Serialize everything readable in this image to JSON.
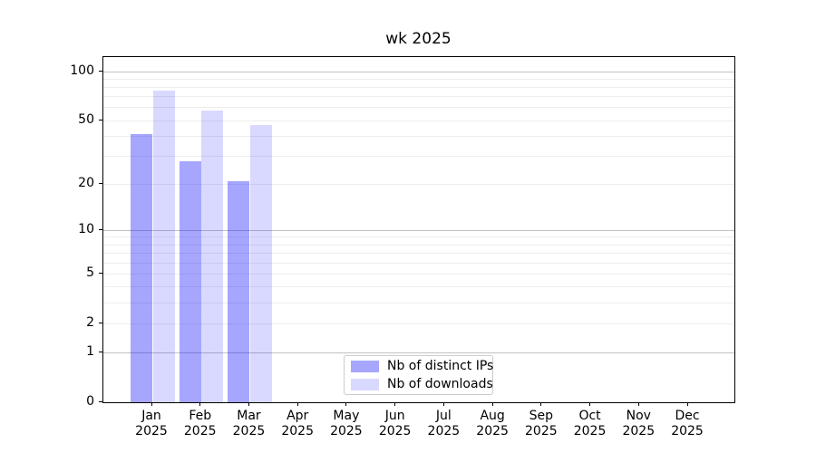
{
  "chart_data": {
    "type": "bar",
    "title": "wk 2025",
    "categories": [
      "Jan",
      "Feb",
      "Mar",
      "Apr",
      "May",
      "Jun",
      "Jul",
      "Aug",
      "Sep",
      "Oct",
      "Nov",
      "Dec"
    ],
    "category_year": "2025",
    "series": [
      {
        "name": "Nb of distinct IPs",
        "color": "#0000ff",
        "alpha": 0.35,
        "values": [
          41,
          28,
          21,
          0,
          0,
          0,
          0,
          0,
          0,
          0,
          0,
          0
        ]
      },
      {
        "name": "Nb of downloads",
        "color": "#0000ff",
        "alpha": 0.15,
        "values": [
          76,
          58,
          47,
          0,
          0,
          0,
          0,
          0,
          0,
          0,
          0,
          0
        ]
      }
    ],
    "xlabel": "",
    "ylabel": "",
    "yscale": "log1p",
    "ylim": [
      0,
      100
    ],
    "ytick_values": [
      0,
      1,
      2,
      5,
      10,
      20,
      50,
      100
    ],
    "ytick_labels": [
      "0",
      "1",
      "2",
      "5",
      "10",
      "20",
      "50",
      "100"
    ],
    "gridlines": {
      "major_values": [
        1,
        10,
        100
      ],
      "minor_values": [
        2,
        3,
        4,
        5,
        6,
        7,
        8,
        9,
        20,
        30,
        40,
        50,
        60,
        70,
        80,
        90
      ],
      "major_color": "#c2c2c2",
      "minor_color": "#ededed"
    },
    "legend": {
      "location": "lower center"
    }
  }
}
